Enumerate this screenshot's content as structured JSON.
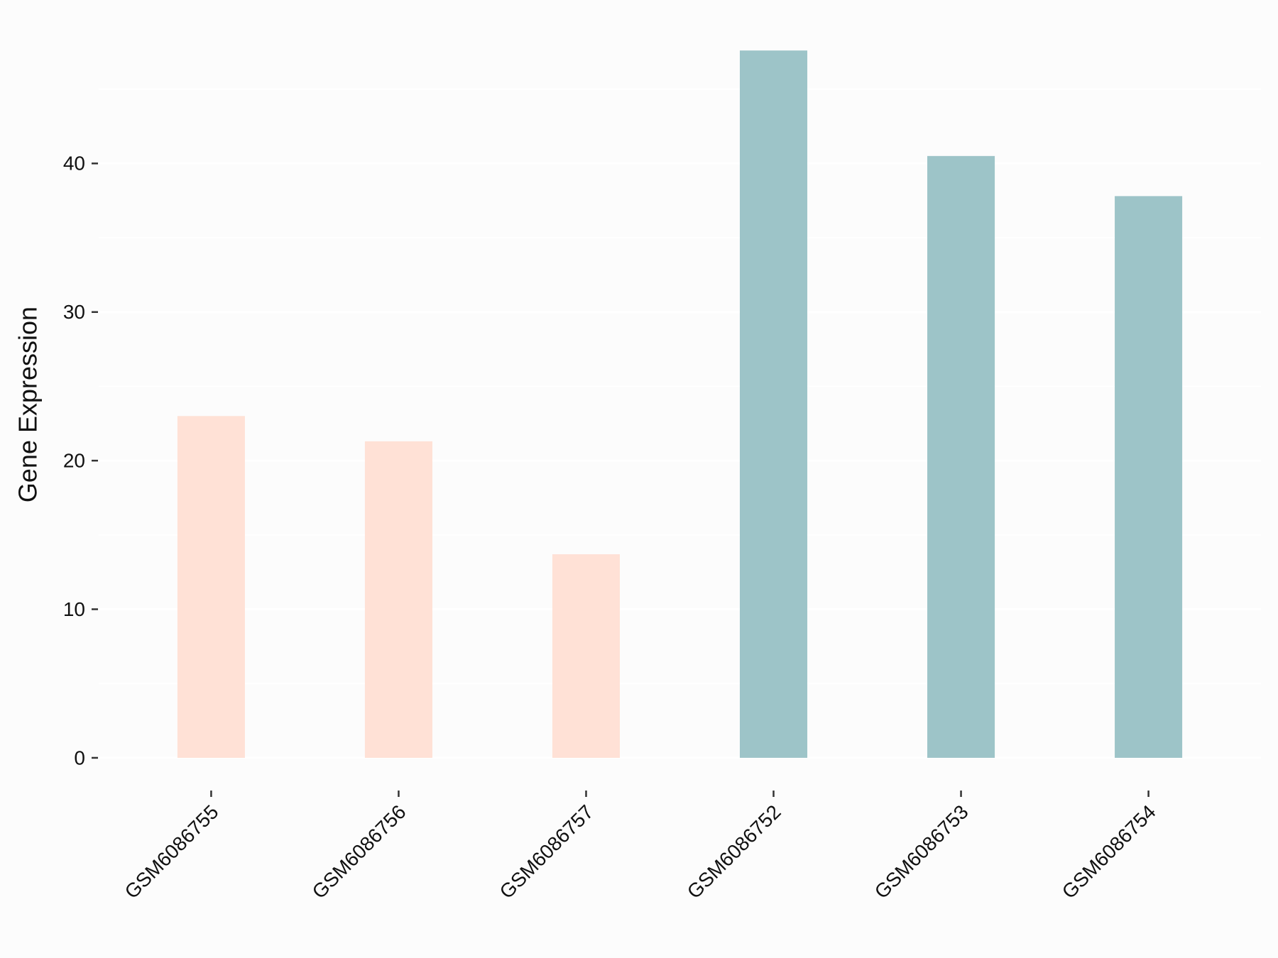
{
  "chart_data": {
    "type": "bar",
    "y_label": "Gene Expression",
    "categories": [
      "GSM6086755",
      "GSM6086756",
      "GSM6086757",
      "GSM6086752",
      "GSM6086753",
      "GSM6086754"
    ],
    "values": [
      23.0,
      21.3,
      13.7,
      47.6,
      40.5,
      37.8
    ],
    "colors": [
      "#ffe1d6",
      "#ffe1d6",
      "#ffe1d6",
      "#9dc4c8",
      "#9dc4c8",
      "#9dc4c8"
    ],
    "ylim": [
      -2.2,
      49.9
    ],
    "yticks": [
      0,
      10,
      20,
      30,
      40
    ],
    "yminor": [
      5,
      15,
      25,
      35,
      45
    ],
    "grid": true,
    "background": "#fcfcfc"
  }
}
